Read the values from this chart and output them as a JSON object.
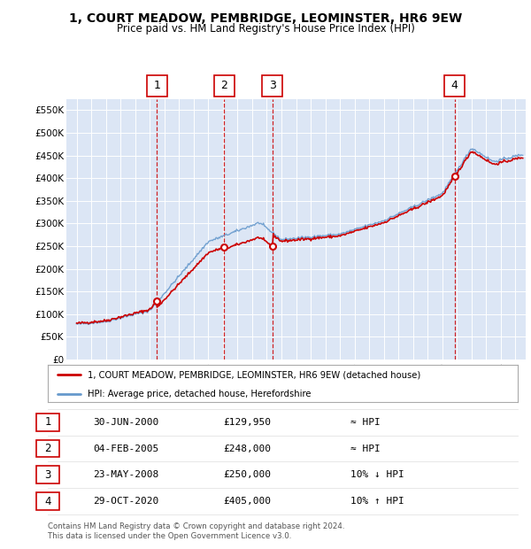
{
  "title": "1, COURT MEADOW, PEMBRIDGE, LEOMINSTER, HR6 9EW",
  "subtitle": "Price paid vs. HM Land Registry's House Price Index (HPI)",
  "background_color": "#dce6f5",
  "ylim": [
    0,
    575000
  ],
  "yticks": [
    0,
    50000,
    100000,
    150000,
    200000,
    250000,
    300000,
    350000,
    400000,
    450000,
    500000,
    550000
  ],
  "ytick_labels": [
    "£0",
    "£50K",
    "£100K",
    "£150K",
    "£200K",
    "£250K",
    "£300K",
    "£350K",
    "£400K",
    "£450K",
    "£500K",
    "£550K"
  ],
  "sale_years_num": [
    2000.5,
    2005.09,
    2008.39,
    2020.83
  ],
  "sale_prices": [
    129950,
    248000,
    250000,
    405000
  ],
  "sale_labels": [
    "1",
    "2",
    "3",
    "4"
  ],
  "sale_color": "#cc0000",
  "hpi_color": "#6699cc",
  "vline_color": "#cc0000",
  "legend_entries": [
    "1, COURT MEADOW, PEMBRIDGE, LEOMINSTER, HR6 9EW (detached house)",
    "HPI: Average price, detached house, Herefordshire"
  ],
  "table_rows": [
    [
      "1",
      "30-JUN-2000",
      "£129,950",
      "≈ HPI"
    ],
    [
      "2",
      "04-FEB-2005",
      "£248,000",
      "≈ HPI"
    ],
    [
      "3",
      "23-MAY-2008",
      "£250,000",
      "10% ↓ HPI"
    ],
    [
      "4",
      "29-OCT-2020",
      "£405,000",
      "10% ↑ HPI"
    ]
  ],
  "footnote": "Contains HM Land Registry data © Crown copyright and database right 2024.\nThis data is licensed under the Open Government Licence v3.0.",
  "xlim_start": 1994.3,
  "xlim_end": 2025.7
}
